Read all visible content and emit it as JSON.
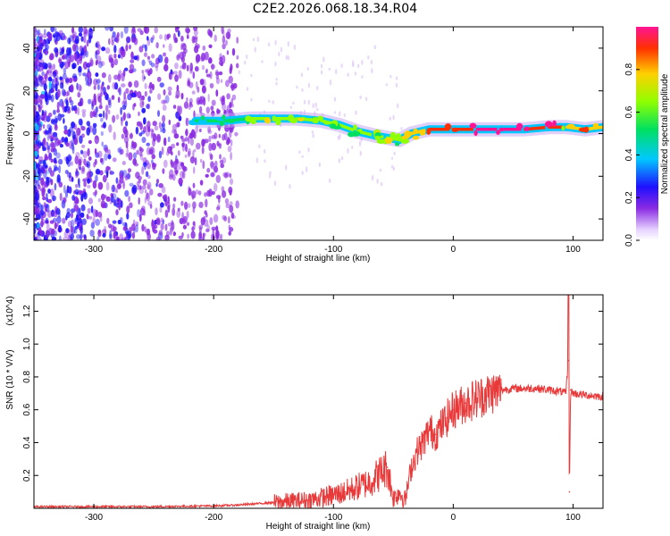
{
  "title": "C2E2.2026.068.18.34.R04",
  "chart_data": [
    {
      "type": "heatmap",
      "xlabel": "Height of straight line (km)",
      "ylabel": "Frequency (Hz)",
      "xlim": [
        -350,
        125
      ],
      "ylim": [
        -50,
        50
      ],
      "x_ticks": [
        -300,
        -200,
        -100,
        0,
        100
      ],
      "y_ticks": [
        -40,
        -20,
        0,
        20,
        40
      ],
      "colorbar": {
        "label": "Normalized spectral amplitude",
        "range": [
          0,
          1
        ],
        "ticks": [
          0.0,
          0.2,
          0.4,
          0.6,
          0.8
        ]
      },
      "ridge": [
        {
          "x": -215,
          "f": 6,
          "amp": 0.35
        },
        {
          "x": -190,
          "f": 6,
          "amp": 0.45
        },
        {
          "x": -170,
          "f": 7,
          "amp": 0.55
        },
        {
          "x": -150,
          "f": 7,
          "amp": 0.6
        },
        {
          "x": -130,
          "f": 7,
          "amp": 0.6
        },
        {
          "x": -110,
          "f": 6,
          "amp": 0.55
        },
        {
          "x": -95,
          "f": 4,
          "amp": 0.55
        },
        {
          "x": -80,
          "f": 1,
          "amp": 0.55
        },
        {
          "x": -65,
          "f": -1,
          "amp": 0.6
        },
        {
          "x": -55,
          "f": -2,
          "amp": 0.6
        },
        {
          "x": -45,
          "f": -3,
          "amp": 0.55
        },
        {
          "x": -35,
          "f": 0,
          "amp": 0.75
        },
        {
          "x": -20,
          "f": 2,
          "amp": 0.8
        },
        {
          "x": 0,
          "f": 2,
          "amp": 0.85
        },
        {
          "x": 20,
          "f": 2,
          "amp": 0.95
        },
        {
          "x": 40,
          "f": 2,
          "amp": 0.95
        },
        {
          "x": 60,
          "f": 2,
          "amp": 0.9
        },
        {
          "x": 80,
          "f": 3,
          "amp": 0.9
        },
        {
          "x": 95,
          "f": 3,
          "amp": 0.7
        },
        {
          "x": 110,
          "f": 2,
          "amp": 0.85
        },
        {
          "x": 125,
          "f": 3,
          "amp": 0.7
        }
      ]
    },
    {
      "type": "line",
      "xlabel": "Height of straight line (km)",
      "ylabel": "SNR (10 * V/V)",
      "y_multiplier": "(x10^4)",
      "xlim": [
        -350,
        125
      ],
      "ylim": [
        0,
        1.3
      ],
      "x_ticks": [
        -300,
        -200,
        -100,
        0,
        100
      ],
      "y_ticks": [
        0.2,
        0.4,
        0.6,
        0.8,
        1.0,
        1.2
      ],
      "color": "#e83a3a",
      "series": [
        {
          "x": [
            -350,
            -300,
            -250,
            -200,
            -180,
            -160,
            -140,
            -120,
            -100,
            -90,
            -80,
            -70,
            -60,
            -55,
            -50,
            -45,
            -40,
            -35,
            -30,
            -25,
            -20,
            -15,
            -10,
            -5,
            0,
            10,
            20,
            30,
            40,
            50,
            60,
            70,
            80,
            90,
            94,
            96,
            97,
            98,
            100,
            110,
            125
          ],
          "y": [
            0.01,
            0.01,
            0.01,
            0.015,
            0.02,
            0.03,
            0.04,
            0.05,
            0.08,
            0.1,
            0.13,
            0.16,
            0.22,
            0.25,
            0.06,
            0.1,
            0.05,
            0.25,
            0.35,
            0.4,
            0.48,
            0.45,
            0.5,
            0.55,
            0.6,
            0.64,
            0.67,
            0.7,
            0.72,
            0.73,
            0.73,
            0.73,
            0.72,
            0.71,
            0.7,
            0.9,
            0.1,
            0.72,
            0.7,
            0.69,
            0.68
          ]
        }
      ]
    }
  ]
}
